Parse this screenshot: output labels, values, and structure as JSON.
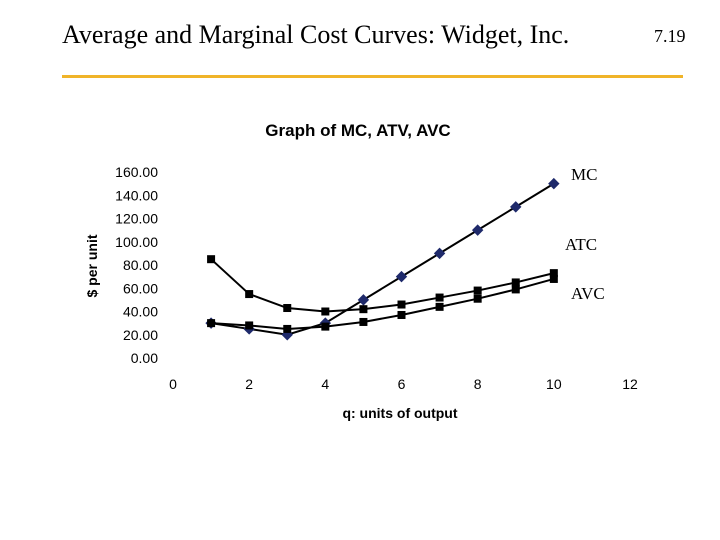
{
  "slide": {
    "title": "Average and Marginal Cost Curves: Widget, Inc.",
    "number": "7.19",
    "rule_color": "#f0b429"
  },
  "chart_data": {
    "type": "line",
    "title": "Graph of MC, ATV, AVC",
    "xlabel": "q: units of output",
    "ylabel": "$ per unit",
    "xlim": [
      0,
      12
    ],
    "ylim": [
      0,
      160
    ],
    "x_ticks": [
      "0",
      "2",
      "4",
      "6",
      "8",
      "10",
      "12"
    ],
    "y_ticks": [
      "0.00",
      "20.00",
      "40.00",
      "60.00",
      "80.00",
      "100.00",
      "120.00",
      "140.00",
      "160.00"
    ],
    "grid": false,
    "series": [
      {
        "name": "MC",
        "marker": "diamond",
        "color": "#1f2a6b",
        "x": [
          1,
          2,
          3,
          4,
          5,
          6,
          7,
          8,
          9,
          10
        ],
        "values": [
          30,
          25,
          20,
          30,
          50,
          70,
          90,
          110,
          130,
          150
        ]
      },
      {
        "name": "ATC",
        "marker": "square",
        "color": "#000000",
        "x": [
          1,
          2,
          3,
          4,
          5,
          6,
          7,
          8,
          9,
          10
        ],
        "values": [
          85,
          55,
          43,
          40,
          42,
          46,
          52,
          58,
          65,
          73
        ]
      },
      {
        "name": "AVC",
        "marker": "square",
        "color": "#000000",
        "x": [
          1,
          2,
          3,
          4,
          5,
          6,
          7,
          8,
          9,
          10
        ],
        "values": [
          30,
          28,
          25,
          27,
          31,
          37,
          44,
          51,
          59,
          68
        ]
      }
    ]
  }
}
